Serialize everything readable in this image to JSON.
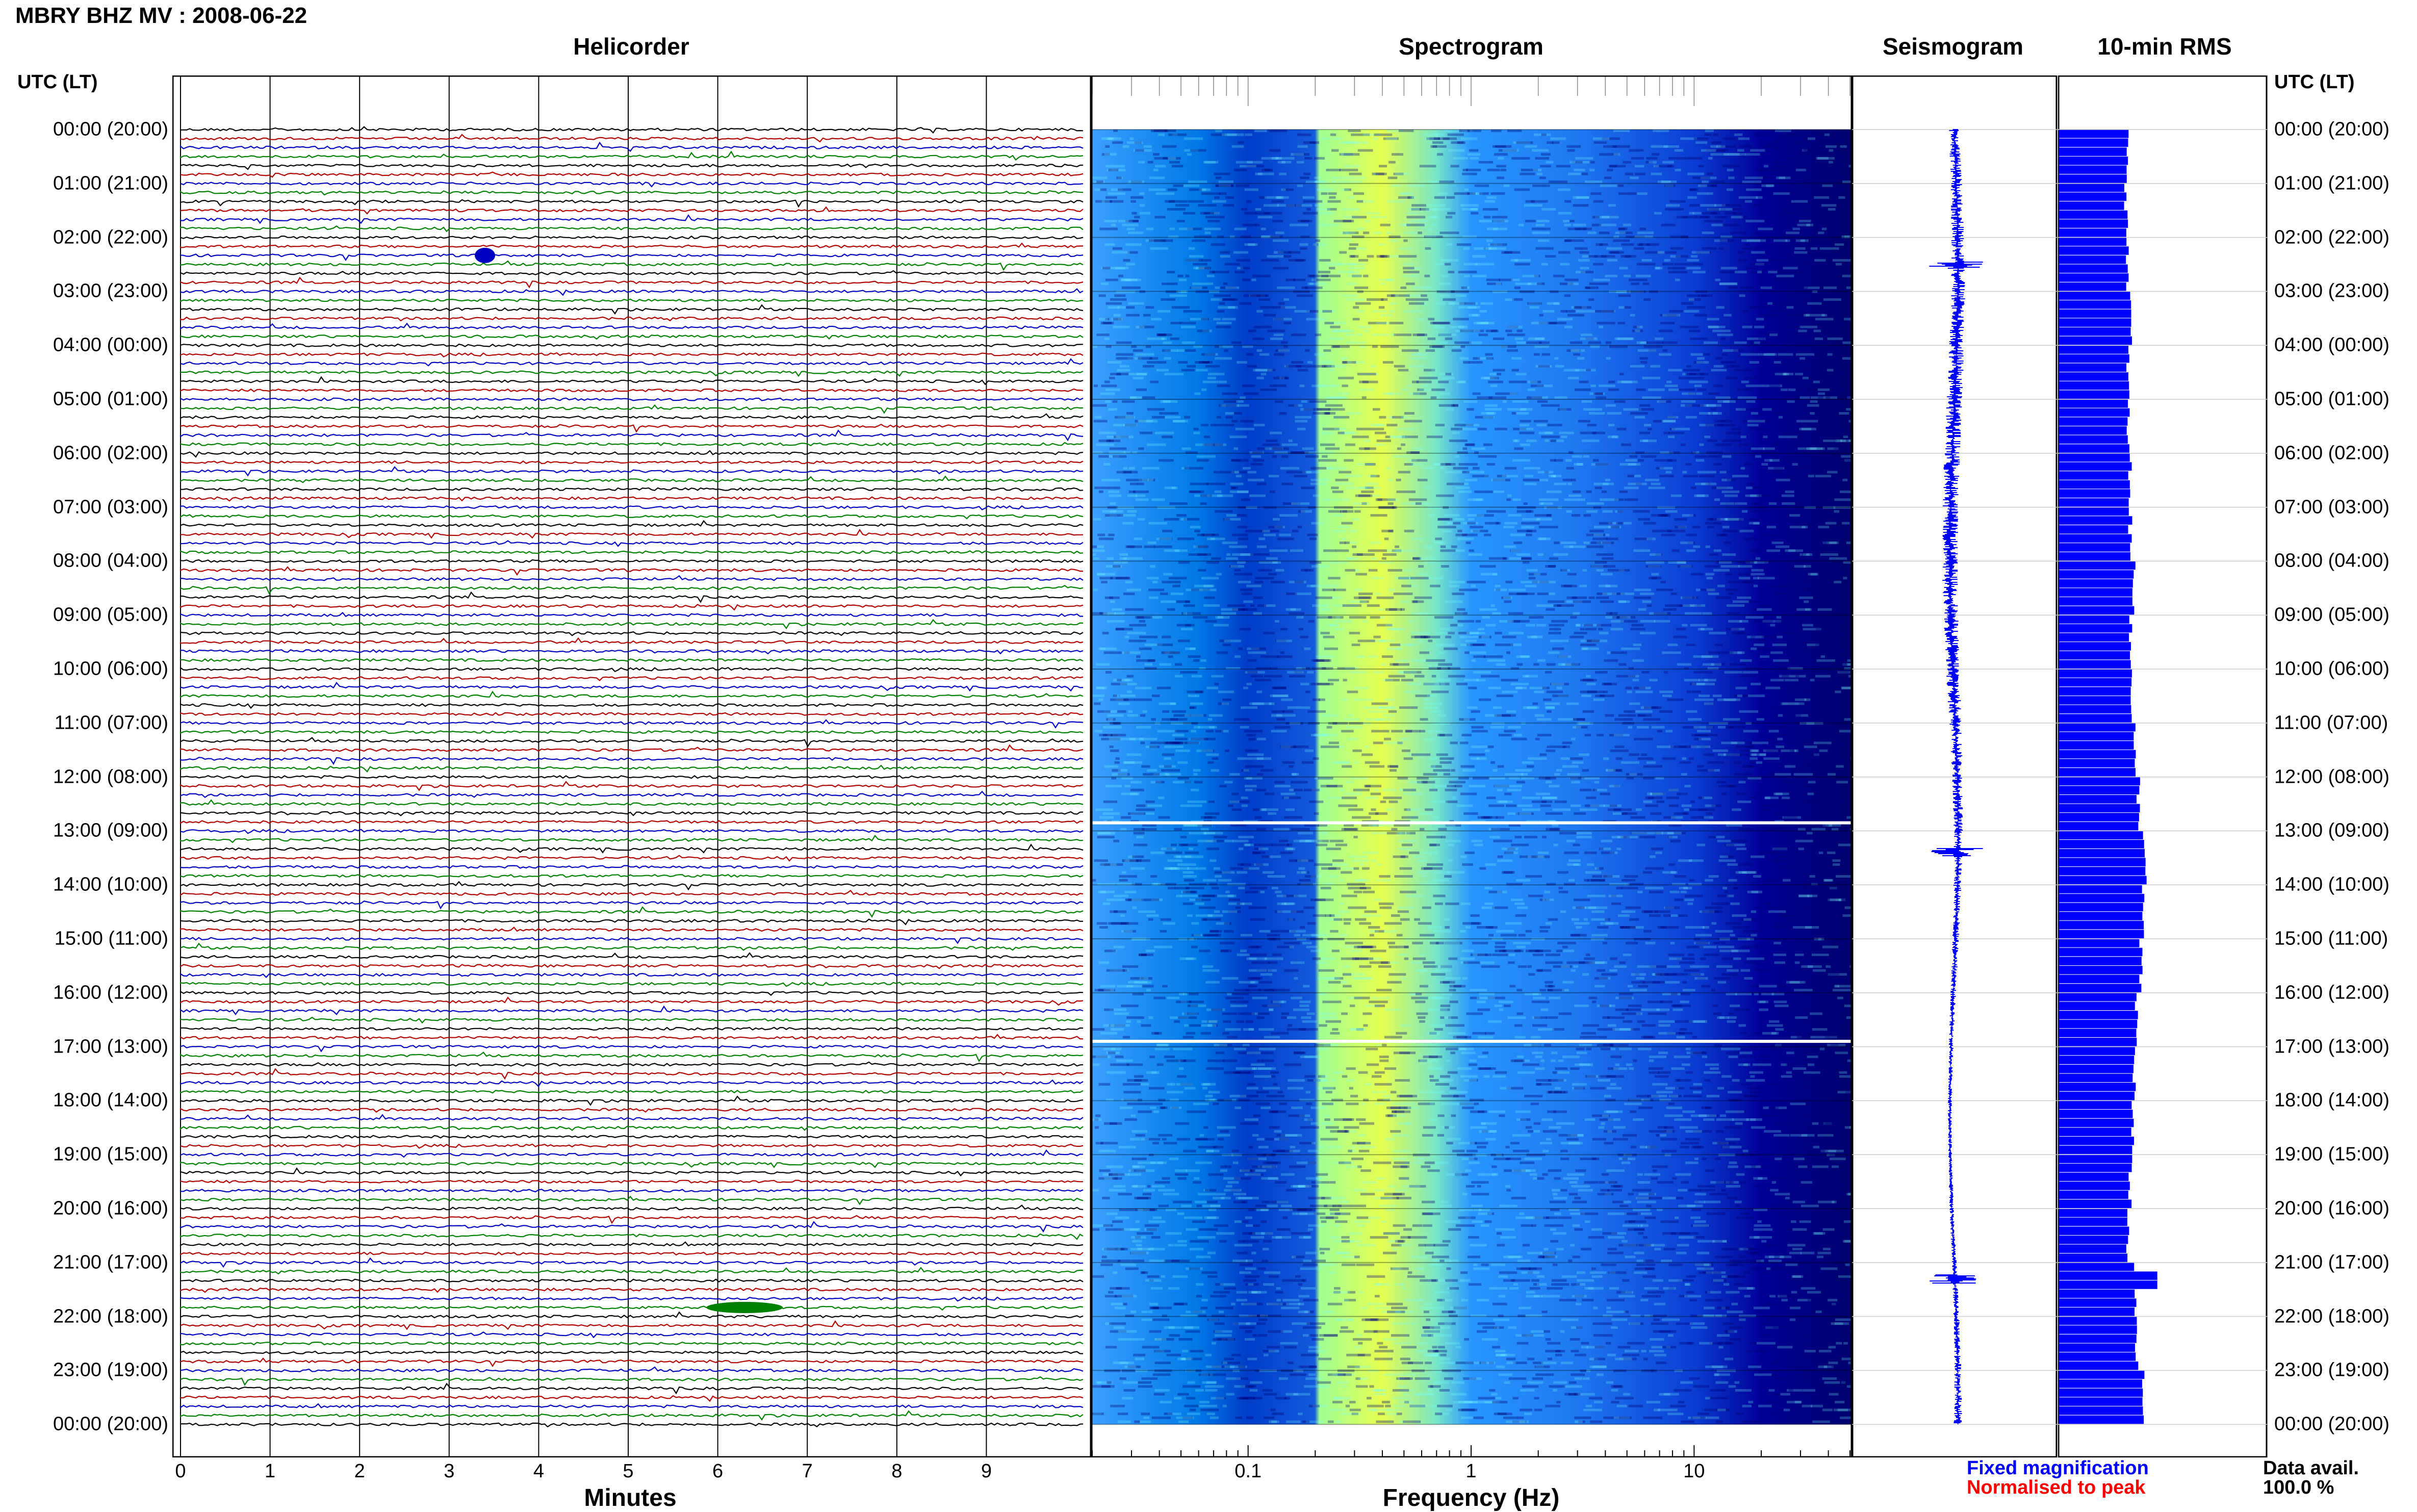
{
  "title": "MBRY BHZ MV : 2008-06-22",
  "panels": {
    "helicorder": "Helicorder",
    "spectrogram": "Spectrogram",
    "seismogram": "Seismogram",
    "rms": "10-min RMS"
  },
  "utc_header_left": "UTC (LT)",
  "utc_header_right": "UTC (LT)",
  "time_labels": [
    "00:00 (20:00)",
    "01:00 (21:00)",
    "02:00 (22:00)",
    "03:00 (23:00)",
    "04:00 (00:00)",
    "05:00 (01:00)",
    "06:00 (02:00)",
    "07:00 (03:00)",
    "08:00 (04:00)",
    "09:00 (05:00)",
    "10:00 (06:00)",
    "11:00 (07:00)",
    "12:00 (08:00)",
    "13:00 (09:00)",
    "14:00 (10:00)",
    "15:00 (11:00)",
    "16:00 (12:00)",
    "17:00 (13:00)",
    "18:00 (14:00)",
    "19:00 (15:00)",
    "20:00 (16:00)",
    "21:00 (17:00)",
    "22:00 (18:00)",
    "23:00 (19:00)",
    "00:00 (20:00)"
  ],
  "x_axis": {
    "minutes_label": "Minutes",
    "minutes_ticks": [
      "0",
      "1",
      "2",
      "3",
      "4",
      "5",
      "6",
      "7",
      "8",
      "9"
    ],
    "frequency_label": "Frequency (Hz)",
    "frequency_ticks": [
      "0.1",
      "1",
      "10"
    ]
  },
  "legend": {
    "fixed": "Fixed magnification",
    "normalised": "Normalised to peak"
  },
  "data_availability": {
    "label": "Data avail.",
    "value": "100.0 %"
  },
  "colors": {
    "trace_cycle": [
      "#000000",
      "#b00000",
      "#0000c0",
      "#008000"
    ],
    "seismogram": "#0000ff",
    "rms": "#0000ff",
    "spectrogram_low": "#00007f",
    "spectrogram_mid": "#00bfff",
    "spectrogram_high": "#ffff00"
  },
  "chart_data": [
    {
      "type": "line",
      "name": "helicorder",
      "xlabel": "Minutes",
      "xlim": [
        0,
        10
      ],
      "lines_per_hour": 6,
      "hours": 24,
      "events": [
        {
          "hour": 21.9,
          "minute": 6.3,
          "amplitude": "large"
        },
        {
          "hour": 2.4,
          "minute": 3.4,
          "amplitude": "medium"
        }
      ]
    },
    {
      "type": "heatmap",
      "name": "spectrogram",
      "xlabel": "Frequency (Hz)",
      "xscale": "log",
      "xlim": [
        0.02,
        50
      ],
      "ylim_hours": [
        0,
        24
      ],
      "gaps_hours": [
        12.85,
        16.9
      ],
      "peak_frequency_band_hz": [
        0.2,
        0.6
      ]
    },
    {
      "type": "line",
      "name": "seismogram",
      "hours": 24,
      "notable_spikes_hours": [
        2.5,
        13.4,
        21.3
      ]
    },
    {
      "type": "bar",
      "name": "10-min RMS",
      "orientation": "horizontal",
      "hours": 24,
      "relative_values_by_hour": [
        0.33,
        0.32,
        0.33,
        0.34,
        0.33,
        0.33,
        0.34,
        0.34,
        0.36,
        0.34,
        0.35,
        0.36,
        0.38,
        0.41,
        0.4,
        0.39,
        0.37,
        0.36,
        0.35,
        0.34,
        0.33,
        0.36,
        0.37,
        0.4
      ],
      "spike_hour": 21.25,
      "spike_value": 0.47
    }
  ]
}
